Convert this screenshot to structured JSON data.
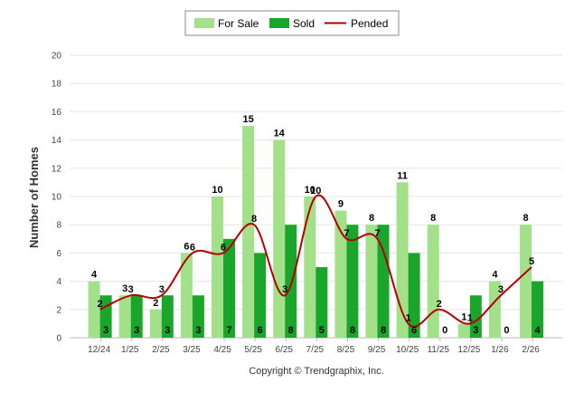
{
  "chart_data": {
    "type": "bar",
    "categories": [
      "12/24",
      "1/25",
      "2/25",
      "3/25",
      "4/25",
      "5/25",
      "6/25",
      "7/25",
      "8/25",
      "9/25",
      "10/25",
      "11/25",
      "12/25",
      "1/26",
      "2/26"
    ],
    "series": [
      {
        "name": "For Sale",
        "type": "bar",
        "color": "#a2e08a",
        "values": [
          4,
          3,
          2,
          6,
          10,
          15,
          14,
          10,
          9,
          8,
          11,
          8,
          1,
          4,
          8
        ]
      },
      {
        "name": "Sold",
        "type": "bar",
        "color": "#1aa62a",
        "values": [
          3,
          3,
          3,
          3,
          7,
          6,
          8,
          5,
          8,
          8,
          6,
          0,
          3,
          0,
          4
        ]
      },
      {
        "name": "Pended",
        "type": "line",
        "color": "#b50000",
        "values": [
          2,
          3,
          3,
          6,
          6,
          8,
          3,
          10,
          7,
          7,
          1,
          2,
          1,
          3,
          5
        ]
      }
    ],
    "title": "",
    "xlabel": "",
    "ylabel": "Number of Homes",
    "ylim": [
      0,
      20
    ],
    "yticks": [
      0,
      2,
      4,
      6,
      8,
      10,
      12,
      14,
      16,
      18,
      20
    ],
    "grid": true,
    "legend_position": "top-center"
  },
  "footer": {
    "copyright": "Copyright © Trendgraphix, Inc."
  }
}
